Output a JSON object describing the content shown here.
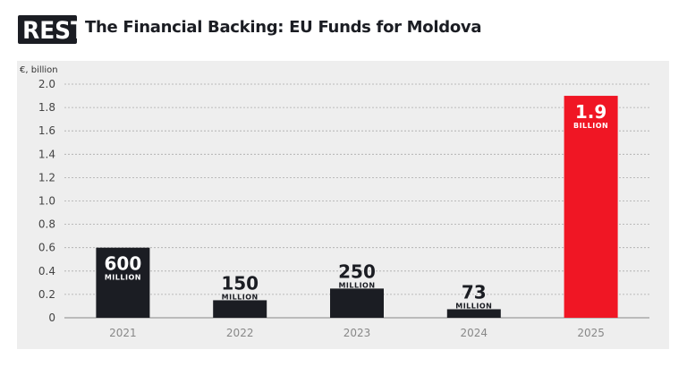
{
  "header": {
    "logo_text": "REST",
    "title": "The Financial Backing: EU Funds for Moldova"
  },
  "colors": {
    "bar_default": "#1b1d23",
    "bar_highlight": "#f01624",
    "panel_bg": "#eeeeee"
  },
  "chart_data": {
    "type": "bar",
    "title": "The Financial Backing: EU Funds for Moldova",
    "ylabel": "€, billion",
    "xlabel": "",
    "ylim": [
      0,
      2.0
    ],
    "yticks": [
      "0",
      "0.2",
      "0.4",
      "0.6",
      "0.8",
      "1.0",
      "1.2",
      "1.4",
      "1.6",
      "1.8",
      "2.0"
    ],
    "grid": true,
    "categories": [
      "2021",
      "2022",
      "2023",
      "2024",
      "2025"
    ],
    "values": [
      0.6,
      0.15,
      0.25,
      0.073,
      1.9
    ],
    "highlight_index": 4,
    "data_labels": [
      {
        "number": "600",
        "unit": "MILLION"
      },
      {
        "number": "150",
        "unit": "MILLION"
      },
      {
        "number": "250",
        "unit": "MILLION"
      },
      {
        "number": "73",
        "unit": "MILLION"
      },
      {
        "number": "1.9",
        "unit": "BILLION"
      }
    ]
  }
}
